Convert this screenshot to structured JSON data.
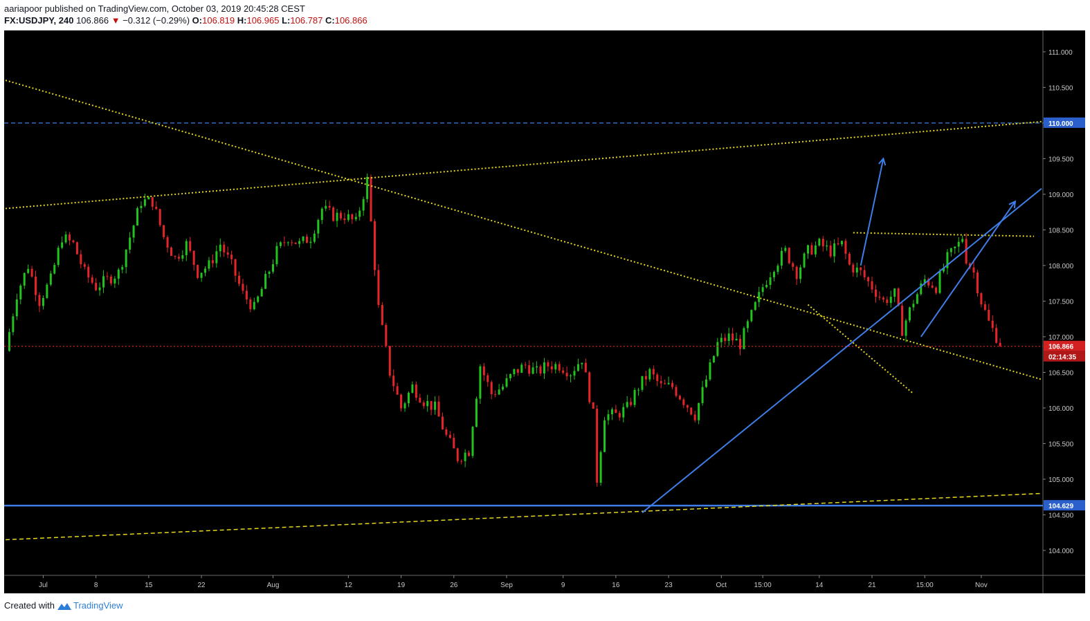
{
  "header": {
    "author": "aariapoor",
    "published_text": "published on TradingView.com, October 03, 2019 20:45:28 CEST",
    "symbol": "FX:USDJPY, 240",
    "last": "106.866",
    "change_arrow": "▼",
    "change": "−0.312 (−0.29%)",
    "o_label": "O:",
    "o_val": "106.819",
    "h_label": "H:",
    "h_val": "106.965",
    "l_label": "L:",
    "l_val": "106.787",
    "c_label": "C:",
    "c_val": "106.866"
  },
  "footer": {
    "created_with": "Created with",
    "brand": "TradingView",
    "logo_icon": "tradingview-logo-icon"
  },
  "colors": {
    "background": "#000000",
    "up": "#22c21f",
    "down": "#e4262b",
    "trend_yellow": "#e6d81c",
    "line_blue": "#3f7ee8",
    "price_line": "#d32020",
    "axis_text": "#c8c8c8"
  },
  "chart_data": {
    "type": "candlestick",
    "symbol": "FX:USDJPY",
    "timeframe": "240",
    "ylim": [
      103.65,
      111.3
    ],
    "y_ticks": [
      "111.000",
      "110.500",
      "110.000",
      "109.500",
      "109.000",
      "108.500",
      "108.000",
      "107.500",
      "107.000",
      "106.500",
      "106.000",
      "105.500",
      "105.000",
      "104.500",
      "104.000"
    ],
    "x_ticks": [
      "Jul",
      "8",
      "15",
      "22",
      "Aug",
      "12",
      "19",
      "26",
      "Sep",
      "9",
      "16",
      "23",
      "Oct",
      "15:00",
      "14",
      "21",
      "15:00",
      "Nov"
    ],
    "price_labels": {
      "current": "106.866",
      "countdown": "02:14:35",
      "level_110": "110.000",
      "level_support": "104.629"
    },
    "price_path": [
      [
        0,
        106.8
      ],
      [
        3,
        107.6
      ],
      [
        6,
        108.0
      ],
      [
        9,
        107.5
      ],
      [
        12,
        107.8
      ],
      [
        15,
        108.4
      ],
      [
        18,
        108.3
      ],
      [
        21,
        107.9
      ],
      [
        24,
        107.7
      ],
      [
        27,
        107.8
      ],
      [
        30,
        107.9
      ],
      [
        33,
        108.4
      ],
      [
        36,
        108.9
      ],
      [
        39,
        108.9
      ],
      [
        42,
        108.4
      ],
      [
        45,
        108.1
      ],
      [
        48,
        108.3
      ],
      [
        51,
        107.9
      ],
      [
        54,
        108.0
      ],
      [
        57,
        108.3
      ],
      [
        60,
        108.0
      ],
      [
        63,
        107.6
      ],
      [
        66,
        107.4
      ],
      [
        69,
        107.8
      ],
      [
        72,
        108.2
      ],
      [
        75,
        108.4
      ],
      [
        78,
        108.3
      ],
      [
        81,
        108.4
      ],
      [
        84,
        108.8
      ],
      [
        87,
        108.7
      ],
      [
        90,
        108.7
      ],
      [
        93,
        108.6
      ],
      [
        96,
        109.2
      ],
      [
        97,
        108.6
      ],
      [
        99,
        107.4
      ],
      [
        102,
        106.5
      ],
      [
        105,
        106.0
      ],
      [
        108,
        106.3
      ],
      [
        111,
        106.1
      ],
      [
        114,
        106.0
      ],
      [
        117,
        105.6
      ],
      [
        120,
        105.3
      ],
      [
        123,
        105.4
      ],
      [
        126,
        106.6
      ],
      [
        129,
        106.2
      ],
      [
        132,
        106.3
      ],
      [
        135,
        106.5
      ],
      [
        138,
        106.6
      ],
      [
        141,
        106.5
      ],
      [
        144,
        106.6
      ],
      [
        147,
        106.6
      ],
      [
        150,
        106.5
      ],
      [
        153,
        106.7
      ],
      [
        156,
        105.9
      ],
      [
        157,
        105.0
      ],
      [
        159,
        105.9
      ],
      [
        162,
        105.9
      ],
      [
        165,
        106.0
      ],
      [
        168,
        106.3
      ],
      [
        171,
        106.5
      ],
      [
        174,
        106.3
      ],
      [
        177,
        106.3
      ],
      [
        180,
        106.1
      ],
      [
        183,
        105.9
      ],
      [
        186,
        106.4
      ],
      [
        189,
        106.9
      ],
      [
        192,
        107.0
      ],
      [
        195,
        106.9
      ],
      [
        198,
        107.3
      ],
      [
        201,
        107.7
      ],
      [
        204,
        108.0
      ],
      [
        207,
        108.2
      ],
      [
        210,
        107.9
      ],
      [
        213,
        108.2
      ],
      [
        216,
        108.3
      ],
      [
        219,
        108.2
      ],
      [
        222,
        108.3
      ],
      [
        224,
        108.0
      ],
      [
        227,
        107.9
      ],
      [
        230,
        107.7
      ],
      [
        233,
        107.5
      ],
      [
        236,
        107.6
      ],
      [
        238,
        107.1
      ],
      [
        241,
        107.5
      ],
      [
        244,
        107.8
      ],
      [
        247,
        107.7
      ],
      [
        250,
        108.1
      ],
      [
        253,
        108.3
      ],
      [
        254,
        108.4
      ],
      [
        255,
        108.1
      ],
      [
        257,
        107.9
      ],
      [
        259,
        107.5
      ],
      [
        261,
        107.2
      ],
      [
        263,
        107.0
      ],
      [
        264,
        106.866
      ]
    ],
    "annotations": [
      {
        "type": "hline",
        "price": 110.0,
        "style": "dashed",
        "color": "blue"
      },
      {
        "type": "hline",
        "price": 104.629,
        "style": "solid",
        "color": "blue"
      },
      {
        "type": "hline",
        "price": 106.866,
        "style": "dotted",
        "color": "red"
      },
      {
        "type": "trendline",
        "from": [
          0,
          108.8
        ],
        "to": [
          275,
          110.02
        ],
        "style": "dotted",
        "color": "yellow"
      },
      {
        "type": "trendline",
        "from": [
          0,
          110.6
        ],
        "to": [
          275,
          106.4
        ],
        "style": "dotted",
        "color": "yellow"
      },
      {
        "type": "trendline",
        "from": [
          0,
          104.15
        ],
        "to": [
          275,
          104.8
        ],
        "style": "dashed",
        "color": "yellow"
      },
      {
        "type": "trendline",
        "from": [
          225,
          108.46
        ],
        "to": [
          273,
          108.41
        ],
        "style": "dotted",
        "color": "yellow"
      },
      {
        "type": "trendline",
        "from": [
          213,
          107.45
        ],
        "to": [
          241,
          106.2
        ],
        "style": "dotted",
        "color": "yellow"
      },
      {
        "type": "trendline",
        "from": [
          169,
          104.53
        ],
        "to": [
          275,
          109.08
        ],
        "style": "solid",
        "color": "blue"
      },
      {
        "type": "arrow",
        "from": [
          243,
          107.0
        ],
        "to": [
          268,
          108.9
        ],
        "color": "blue"
      },
      {
        "type": "arrow",
        "from": [
          227,
          108.0
        ],
        "to": [
          233,
          109.5
        ],
        "color": "blue"
      }
    ]
  }
}
